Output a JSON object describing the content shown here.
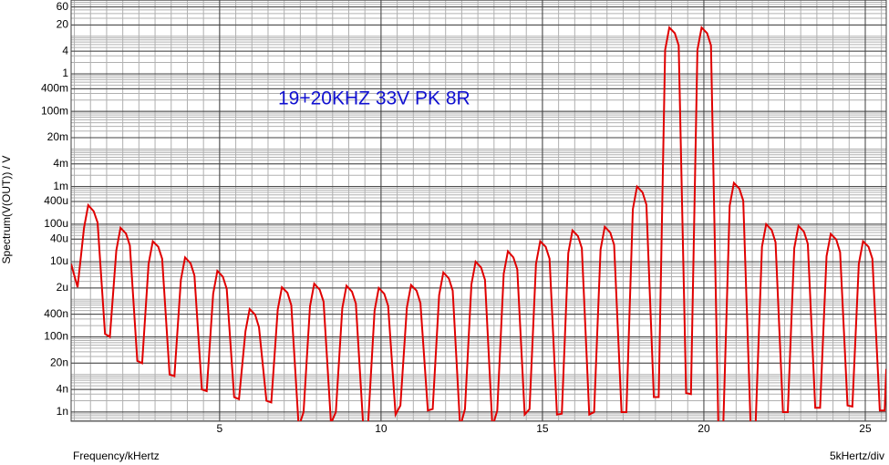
{
  "chart_data": {
    "type": "line",
    "annotation": "19+20KHZ 33V PK 8R",
    "x_label": "Frequency/kHertz",
    "x_scale_label": "5kHertz/div",
    "y_label": "Spectrum(V(OUT)) / V",
    "log_y": true,
    "grid": true,
    "xlim": [
      0.4,
      25.65
    ],
    "xticks": [
      5,
      10,
      15,
      20,
      25
    ],
    "ylim": [
      5.7e-10,
      92
    ],
    "yticks": [
      60,
      20,
      4,
      1,
      {
        "value": 0.4,
        "label": "400m"
      },
      {
        "value": 0.1,
        "label": "100m"
      },
      {
        "value": 0.02,
        "label": "20m"
      },
      {
        "value": 0.004,
        "label": "4m"
      },
      {
        "value": 0.001,
        "label": "1m"
      },
      {
        "value": 0.0004,
        "label": "400u"
      },
      {
        "value": 0.0001,
        "label": "100u"
      },
      {
        "value": 4e-05,
        "label": "40u"
      },
      {
        "value": 1e-05,
        "label": "10u"
      },
      {
        "value": 2e-06,
        "label": "2u"
      },
      {
        "value": 4e-07,
        "label": "400n"
      },
      {
        "value": 1e-07,
        "label": "100n"
      },
      {
        "value": 2e-08,
        "label": "20n"
      },
      {
        "value": 4e-09,
        "label": "4n"
      },
      {
        "value": 1e-09,
        "label": "1n"
      }
    ],
    "x": [
      0.4,
      0.6,
      0.8,
      0.93,
      1.1,
      1.22,
      1.45,
      1.6,
      1.8,
      1.93,
      2.1,
      2.22,
      2.45,
      2.6,
      2.8,
      2.93,
      3.1,
      3.22,
      3.45,
      3.6,
      3.8,
      3.93,
      4.1,
      4.22,
      4.45,
      4.6,
      4.8,
      4.93,
      5.1,
      5.22,
      5.45,
      5.6,
      5.8,
      5.93,
      6.1,
      6.22,
      6.45,
      6.6,
      6.8,
      6.93,
      7.1,
      7.22,
      7.45,
      7.6,
      7.8,
      7.93,
      8.1,
      8.22,
      8.45,
      8.6,
      8.8,
      8.93,
      9.1,
      9.22,
      9.45,
      9.6,
      9.8,
      9.93,
      10.1,
      10.22,
      10.45,
      10.6,
      10.8,
      10.93,
      11.1,
      11.22,
      11.45,
      11.6,
      11.8,
      11.93,
      12.1,
      12.22,
      12.45,
      12.6,
      12.8,
      12.93,
      13.1,
      13.22,
      13.45,
      13.6,
      13.8,
      13.93,
      14.1,
      14.22,
      14.45,
      14.6,
      14.8,
      14.93,
      15.1,
      15.22,
      15.45,
      15.6,
      15.8,
      15.93,
      16.1,
      16.22,
      16.45,
      16.6,
      16.8,
      16.93,
      17.1,
      17.22,
      17.45,
      17.6,
      17.8,
      17.93,
      18.1,
      18.22,
      18.45,
      18.6,
      18.8,
      18.93,
      19.1,
      19.22,
      19.45,
      19.6,
      19.8,
      19.93,
      20.1,
      20.22,
      20.45,
      20.6,
      20.8,
      20.93,
      21.1,
      21.22,
      21.45,
      21.6,
      21.8,
      21.93,
      22.1,
      22.22,
      22.45,
      22.6,
      22.8,
      22.93,
      23.1,
      23.22,
      23.45,
      23.6,
      23.8,
      23.93,
      24.1,
      24.22,
      24.45,
      24.6,
      24.8,
      24.93,
      25.1,
      25.22,
      25.45,
      25.6,
      25.65
    ],
    "series": [
      {
        "name": "V(OUT)",
        "color": "#e00000",
        "values": [
          8.7e-06,
          2.1e-06,
          8e-05,
          0.00032,
          0.00022,
          0.00011,
          1.2e-07,
          1e-07,
          2e-05,
          8e-05,
          5.6e-05,
          2.7e-05,
          2.3e-08,
          2e-08,
          8.8e-06,
          3.5e-05,
          2.5e-05,
          1.2e-05,
          1e-08,
          9e-09,
          3.3e-06,
          1.3e-05,
          9.1e-06,
          4.3e-06,
          4e-09,
          3.6e-09,
          1.4e-06,
          5.7e-06,
          4e-06,
          1.9e-06,
          2.5e-09,
          2.2e-09,
          1.4e-07,
          5.5e-07,
          3.9e-07,
          1.8e-07,
          2e-09,
          1.8e-09,
          5.3e-07,
          2.1e-06,
          1.5e-06,
          7e-07,
          4e-10,
          1e-09,
          6.5e-07,
          2.6e-06,
          1.8e-06,
          8.7e-07,
          5e-10,
          1e-09,
          5.8e-07,
          2.3e-06,
          1.6e-06,
          7.7e-07,
          4e-10,
          5e-10,
          5e-07,
          2e-06,
          1.4e-06,
          6.7e-07,
          8.6e-10,
          1.5e-09,
          6e-07,
          2.4e-06,
          1.7e-06,
          8e-07,
          1.1e-09,
          1.2e-09,
          1.3e-06,
          5.2e-06,
          3.6e-06,
          1.7e-06,
          4e-10,
          1.2e-09,
          2.5e-06,
          1e-05,
          7e-06,
          3.3e-06,
          4e-10,
          1.1e-09,
          4.8e-06,
          1.9e-05,
          1.3e-05,
          6.3e-06,
          8.6e-10,
          1.2e-09,
          8.8e-06,
          3.5e-05,
          2.5e-05,
          1.2e-05,
          8.6e-10,
          9e-10,
          1.7e-05,
          6.8e-05,
          4.8e-05,
          2.3e-05,
          8.6e-10,
          1e-09,
          2.1e-05,
          8.5e-05,
          6e-05,
          2.8e-05,
          1e-09,
          1e-09,
          0.00025,
          0.001,
          0.0007,
          0.00033,
          2.5e-09,
          2.5e-09,
          4.3,
          17,
          12,
          5.7,
          3.2e-09,
          3e-09,
          4.3,
          17,
          12,
          5.7,
          4e-10,
          4e-10,
          0.00031,
          0.00125,
          0.00088,
          0.00042,
          4e-10,
          4e-10,
          2.5e-05,
          0.0001,
          7e-05,
          3.3e-05,
          1e-09,
          1e-09,
          2.3e-05,
          9e-05,
          6.3e-05,
          3e-05,
          1.3e-09,
          1.3e-09,
          1.4e-05,
          5.5e-05,
          3.9e-05,
          1.8e-05,
          1.5e-09,
          1.4e-09,
          8.8e-06,
          3.5e-05,
          2.5e-05,
          1.2e-05,
          1.1e-09,
          1.1e-09,
          1.4e-08
        ]
      }
    ]
  }
}
